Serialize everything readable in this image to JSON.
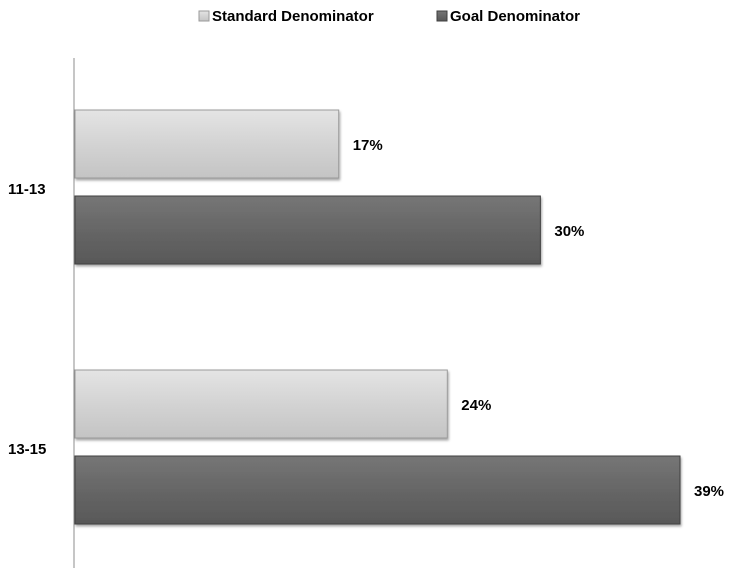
{
  "chart_data": {
    "type": "bar",
    "orientation": "horizontal",
    "categories": [
      "11-13",
      "13-15"
    ],
    "series": [
      {
        "name": "Standard Denominator",
        "values": [
          17,
          24
        ],
        "labels": [
          "17%",
          "24%"
        ],
        "color": "#d3d3d3"
      },
      {
        "name": "Goal Denominator",
        "values": [
          30,
          39
        ],
        "labels": [
          "30%",
          "39%"
        ],
        "color": "#666666"
      }
    ],
    "legend_position": "top",
    "grid": false,
    "xlim": [
      0,
      40
    ]
  }
}
